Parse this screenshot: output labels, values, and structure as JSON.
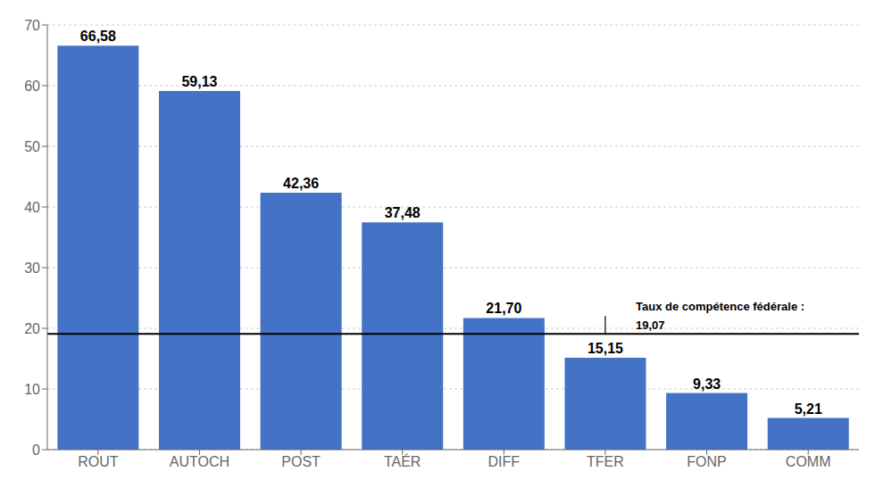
{
  "chart_data": {
    "type": "bar",
    "categories": [
      "ROUT",
      "AUTOCH",
      "POST",
      "TAÉR",
      "DIFF",
      "TFER",
      "FONP",
      "COMM"
    ],
    "values": [
      66.58,
      59.13,
      42.36,
      37.48,
      21.7,
      15.15,
      9.33,
      5.21
    ],
    "value_labels": [
      "66,58",
      "59,13",
      "42,36",
      "37,48",
      "21,70",
      "15,15",
      "9,33",
      "5,21"
    ],
    "data_labels": true,
    "color": "#4472C4",
    "ylim": [
      0,
      70
    ],
    "yticks": [
      0,
      10,
      20,
      30,
      40,
      50,
      60,
      70
    ],
    "grid": true,
    "reference_line": 19.07,
    "annotations": [
      "Taux de compétence fédérale :",
      "19,07"
    ]
  }
}
